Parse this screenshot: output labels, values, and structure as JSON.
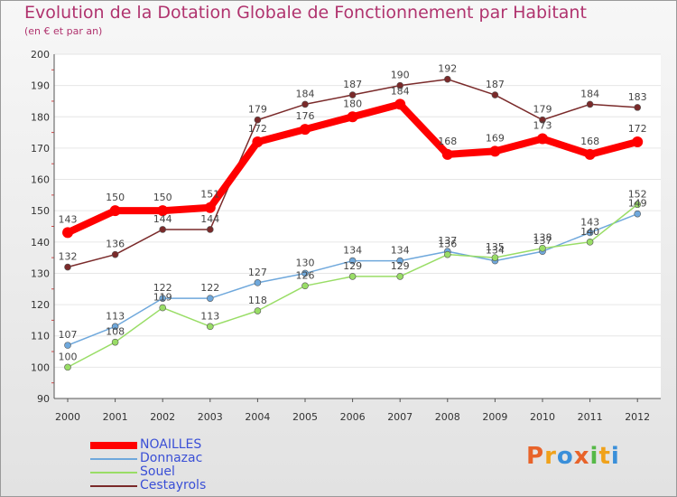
{
  "title": "Evolution de la Dotation Globale de Fonctionnement par Habitant",
  "subtitle": "(en € et par an)",
  "logo": {
    "text": "Proxiti",
    "colors": [
      "#e8632a",
      "#f0a21b",
      "#3a8fd9",
      "#e8632a",
      "#56b947",
      "#f0a21b",
      "#3a8fd9"
    ]
  },
  "chart_data": {
    "type": "line",
    "title": "Evolution de la Dotation Globale de Fonctionnement par Habitant",
    "subtitle": "(en € et par an)",
    "xlabel": "",
    "ylabel": "",
    "ylim": [
      90,
      200
    ],
    "yticks": [
      90,
      100,
      110,
      120,
      130,
      140,
      150,
      160,
      170,
      180,
      190,
      200
    ],
    "categories": [
      "2000",
      "2001",
      "2002",
      "2003",
      "2004",
      "2005",
      "2006",
      "2007",
      "2008",
      "2009",
      "2010",
      "2011",
      "2012"
    ],
    "series": [
      {
        "name": "NOAILLES",
        "color": "#ff0000",
        "values": [
          143,
          150,
          150,
          151,
          172,
          176,
          180,
          184,
          168,
          169,
          173,
          168,
          172
        ]
      },
      {
        "name": "Donnazac",
        "color": "#6fa8dc",
        "values": [
          107,
          113,
          122,
          122,
          127,
          130,
          134,
          134,
          137,
          134,
          137,
          143,
          149
        ]
      },
      {
        "name": "Souel",
        "color": "#99dd66",
        "values": [
          100,
          108,
          119,
          113,
          118,
          126,
          129,
          129,
          136,
          135,
          138,
          140,
          152
        ]
      },
      {
        "name": "Cestayrols",
        "color": "#7a2a2a",
        "values": [
          132,
          136,
          144,
          144,
          179,
          184,
          187,
          190,
          192,
          187,
          179,
          184,
          183
        ]
      }
    ]
  }
}
